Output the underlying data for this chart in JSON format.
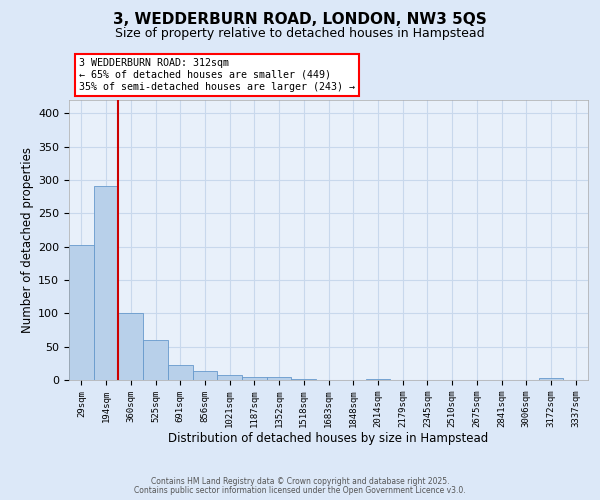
{
  "title_line1": "3, WEDDERBURN ROAD, LONDON, NW3 5QS",
  "title_line2": "Size of property relative to detached houses in Hampstead",
  "xlabel": "Distribution of detached houses by size in Hampstead",
  "ylabel": "Number of detached properties",
  "bar_labels": [
    "29sqm",
    "194sqm",
    "360sqm",
    "525sqm",
    "691sqm",
    "856sqm",
    "1021sqm",
    "1187sqm",
    "1352sqm",
    "1518sqm",
    "1683sqm",
    "1848sqm",
    "2014sqm",
    "2179sqm",
    "2345sqm",
    "2510sqm",
    "2675sqm",
    "2841sqm",
    "3006sqm",
    "3172sqm",
    "3337sqm"
  ],
  "bar_values": [
    203,
    291,
    100,
    60,
    22,
    13,
    8,
    4,
    4,
    1,
    0,
    0,
    2,
    0,
    0,
    0,
    0,
    0,
    0,
    3,
    0
  ],
  "bar_color": "#b8d0ea",
  "bar_edge_color": "#6699cc",
  "reference_line_color": "#cc0000",
  "annotation_line1": "3 WEDDERBURN ROAD: 312sqm",
  "annotation_line2": "← 65% of detached houses are smaller (449)",
  "annotation_line3": "35% of semi-detached houses are larger (243) →",
  "annotation_box_color": "white",
  "annotation_box_edge_color": "red",
  "ylim": [
    0,
    420
  ],
  "yticks": [
    0,
    50,
    100,
    150,
    200,
    250,
    300,
    350,
    400
  ],
  "grid_color": "#c8d8ec",
  "bg_color": "#dce8f8",
  "plot_bg_color": "#e8f0fa",
  "footer_line1": "Contains HM Land Registry data © Crown copyright and database right 2025.",
  "footer_line2": "Contains public sector information licensed under the Open Government Licence v3.0."
}
